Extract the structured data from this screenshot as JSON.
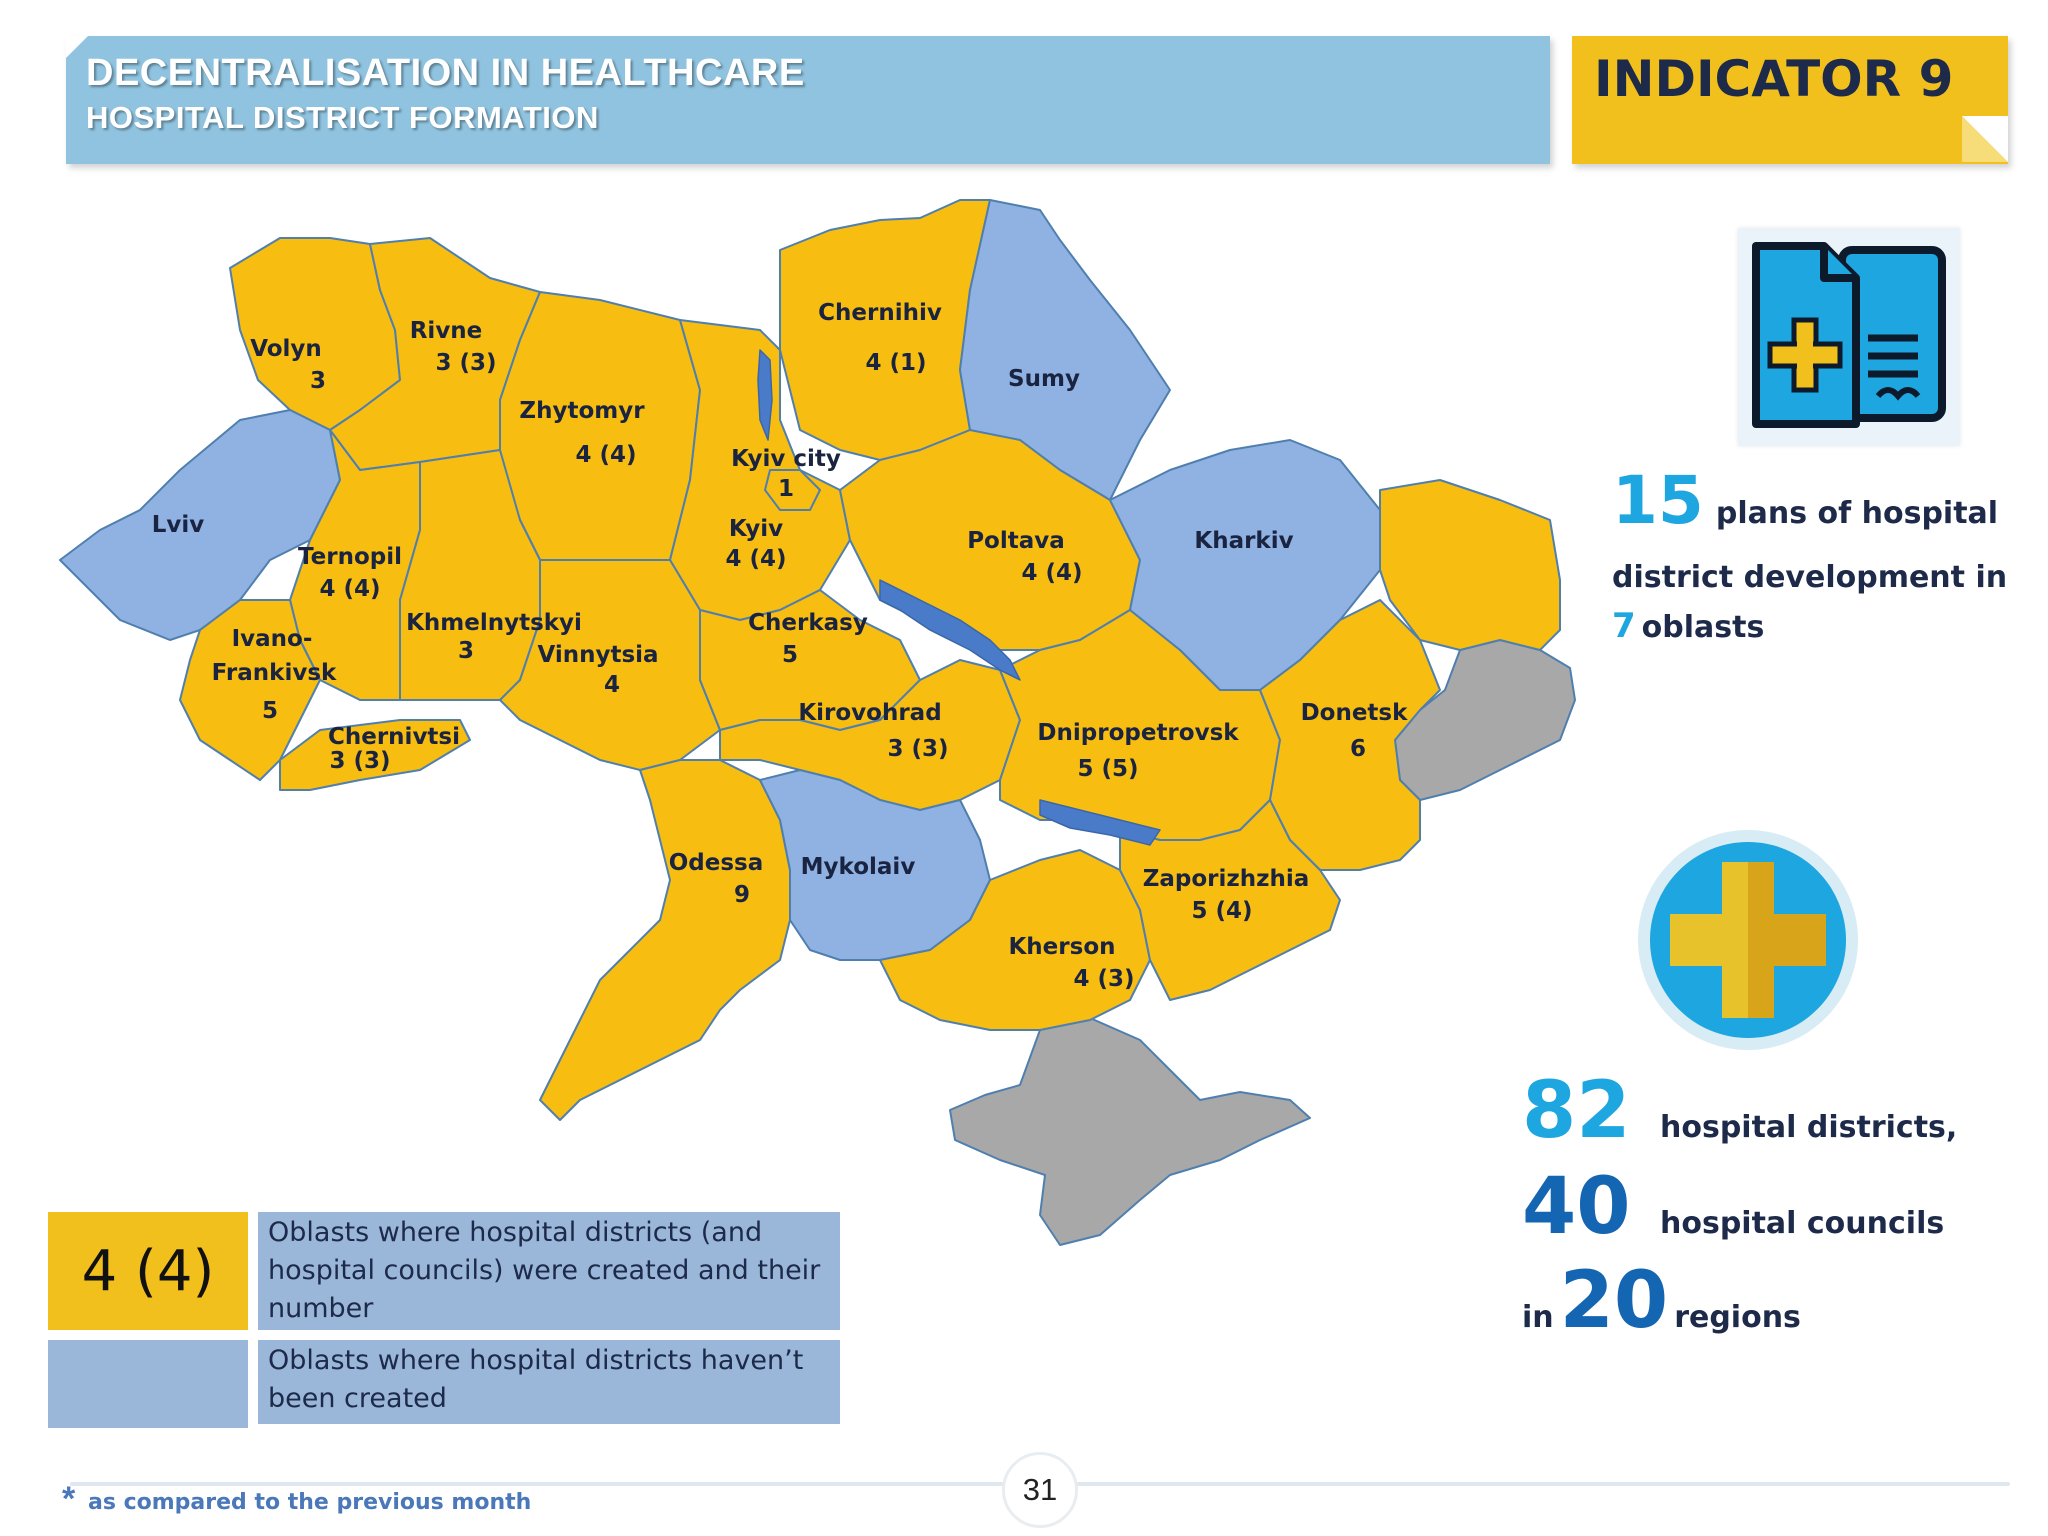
{
  "header": {
    "title": "DECENTRALISATION IN HEALTHCARE",
    "subtitle": "HOSPITAL DISTRICT FORMATION",
    "indicator": "INDICATOR 9"
  },
  "colors": {
    "created": "#f2c01c",
    "not_created": "#8fb2e2",
    "occupied": "#a8a8a8",
    "water": "#4a7bc8"
  },
  "map": {
    "regions": [
      {
        "name": "Volyn",
        "value": "3",
        "status": "created"
      },
      {
        "name": "Rivne",
        "value": "3 (3)",
        "status": "created"
      },
      {
        "name": "Zhytomyr",
        "value": "4 (4)",
        "status": "created"
      },
      {
        "name": "Chernihiv",
        "value": "4 (1)",
        "status": "created"
      },
      {
        "name": "Sumy",
        "value": "",
        "status": "not_created"
      },
      {
        "name": "Kyiv city",
        "value": "1",
        "status": "created"
      },
      {
        "name": "Kyiv",
        "value": "4 (4)",
        "status": "created"
      },
      {
        "name": "Lviv",
        "value": "",
        "status": "not_created"
      },
      {
        "name": "Ternopil",
        "value": "4 (4)",
        "status": "created"
      },
      {
        "name": "Poltava",
        "value": "4 (4)",
        "status": "created"
      },
      {
        "name": "Kharkiv",
        "value": "",
        "status": "not_created"
      },
      {
        "name": "Ivano-Frankivsk",
        "value": "5",
        "status": "created"
      },
      {
        "name": "Khmelnytskyi",
        "value": "3",
        "status": "created"
      },
      {
        "name": "Vinnytsia",
        "value": "4",
        "status": "created"
      },
      {
        "name": "Cherkasy",
        "value": "5",
        "status": "created"
      },
      {
        "name": "Chernivtsi",
        "value": "3 (3)",
        "status": "created"
      },
      {
        "name": "Kirovohrad",
        "value": "3 (3)",
        "status": "created"
      },
      {
        "name": "Dnipropetrovsk",
        "value": "5 (5)",
        "status": "created"
      },
      {
        "name": "Donetsk",
        "value": "6",
        "status": "created"
      },
      {
        "name": "Odessa",
        "value": "9",
        "status": "created"
      },
      {
        "name": "Mykolaiv",
        "value": "",
        "status": "not_created"
      },
      {
        "name": "Zaporizhzhia",
        "value": "5 (4)",
        "status": "created"
      },
      {
        "name": "Kherson",
        "value": "4 (3)",
        "status": "created"
      }
    ],
    "labels": {
      "volyn": "Volyn",
      "volyn_v": "3",
      "rivne": "Rivne",
      "rivne_v": "3 (3)",
      "zhytomyr": "Zhytomyr",
      "zhytomyr_v": "4 (4)",
      "chernihiv": "Chernihiv",
      "chernihiv_v": "4 (1)",
      "sumy": "Sumy",
      "kyiv_city": "Kyiv city",
      "kyiv_city_v": "1",
      "kyiv": "Kyiv",
      "kyiv_v": "4 (4)",
      "lviv": "Lviv",
      "ternopil": "Ternopil",
      "ternopil_v": "4 (4)",
      "poltava": "Poltava",
      "poltava_v": "4 (4)",
      "kharkiv": "Kharkiv",
      "ivano_1": "Ivano-",
      "ivano_2": "Frankivsk",
      "ivano_v": "5",
      "khmelnytskyi": "Khmelnytskyi",
      "khmelnytskyi_v": "3",
      "vinnytsia": "Vinnytsia",
      "vinnytsia_v": "4",
      "cherkasy": "Cherkasy",
      "cherkasy_v": "5",
      "chernivtsi": "Chernivtsi",
      "chernivtsi_v": "3 (3)",
      "kirovohrad": "Kirovohrad",
      "kirovohrad_v": "3 (3)",
      "dnipropetrovsk": "Dnipropetrovsk",
      "dnipropetrovsk_v": "5 (5)",
      "donetsk": "Donetsk",
      "donetsk_v": "6",
      "odessa": "Odessa",
      "odessa_v": "9",
      "mykolaiv": "Mykolaiv",
      "zaporizhzhia": "Zaporizhzhia",
      "zaporizhzhia_v": "5 (4)",
      "kherson": "Kherson",
      "kherson_v": "4 (3)"
    }
  },
  "stats": {
    "plans_number": "15",
    "plans_text": "plans of hospital",
    "plans_text_2": "district development in",
    "oblasts_number": "7",
    "oblasts_text": "oblasts",
    "districts_number": "82",
    "districts_text": "hospital districts,",
    "councils_number": "40",
    "councils_text": "hospital councils",
    "regions_prefix": "in",
    "regions_number": "20",
    "regions_text": "regions"
  },
  "legend": {
    "sample_value": "4 (4)",
    "created_text": "Oblasts where hospital districts (and hospital councils) were created and their number",
    "not_created_text": "Oblasts where hospital districts haven’t been created"
  },
  "footer": {
    "page_number": "31",
    "footnote_marker": "*",
    "footnote": "as compared to the previous month"
  }
}
